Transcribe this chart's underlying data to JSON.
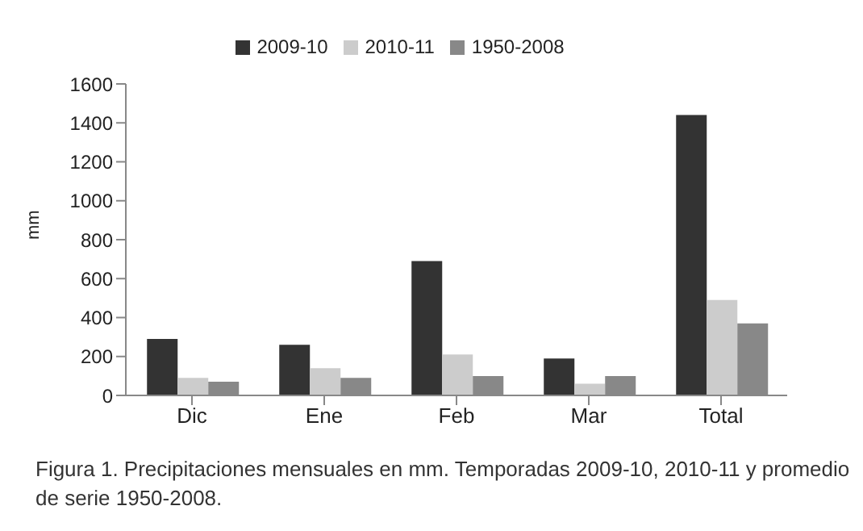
{
  "chart_data": {
    "type": "bar",
    "ylabel": "mm",
    "categories": [
      "Dic",
      "Ene",
      "Feb",
      "Mar",
      "Total"
    ],
    "series": [
      {
        "name": "2009-10",
        "color": "#333333",
        "values": [
          290,
          260,
          690,
          190,
          1440
        ]
      },
      {
        "name": "2010-11",
        "color": "#cccccc",
        "values": [
          90,
          140,
          210,
          60,
          490
        ]
      },
      {
        "name": "1950-2008",
        "color": "#888888",
        "values": [
          70,
          90,
          100,
          100,
          370
        ]
      }
    ],
    "ylim": [
      0,
      1600
    ],
    "yticks": [
      0,
      200,
      400,
      600,
      800,
      1000,
      1200,
      1400,
      1600
    ],
    "grid": false,
    "legend": "top",
    "annotations": [
      "Figura 1. Precipitaciones mensuales en mm. Temporadas 2009-10, 2010-11 y promedio de serie 1950-2008."
    ]
  }
}
